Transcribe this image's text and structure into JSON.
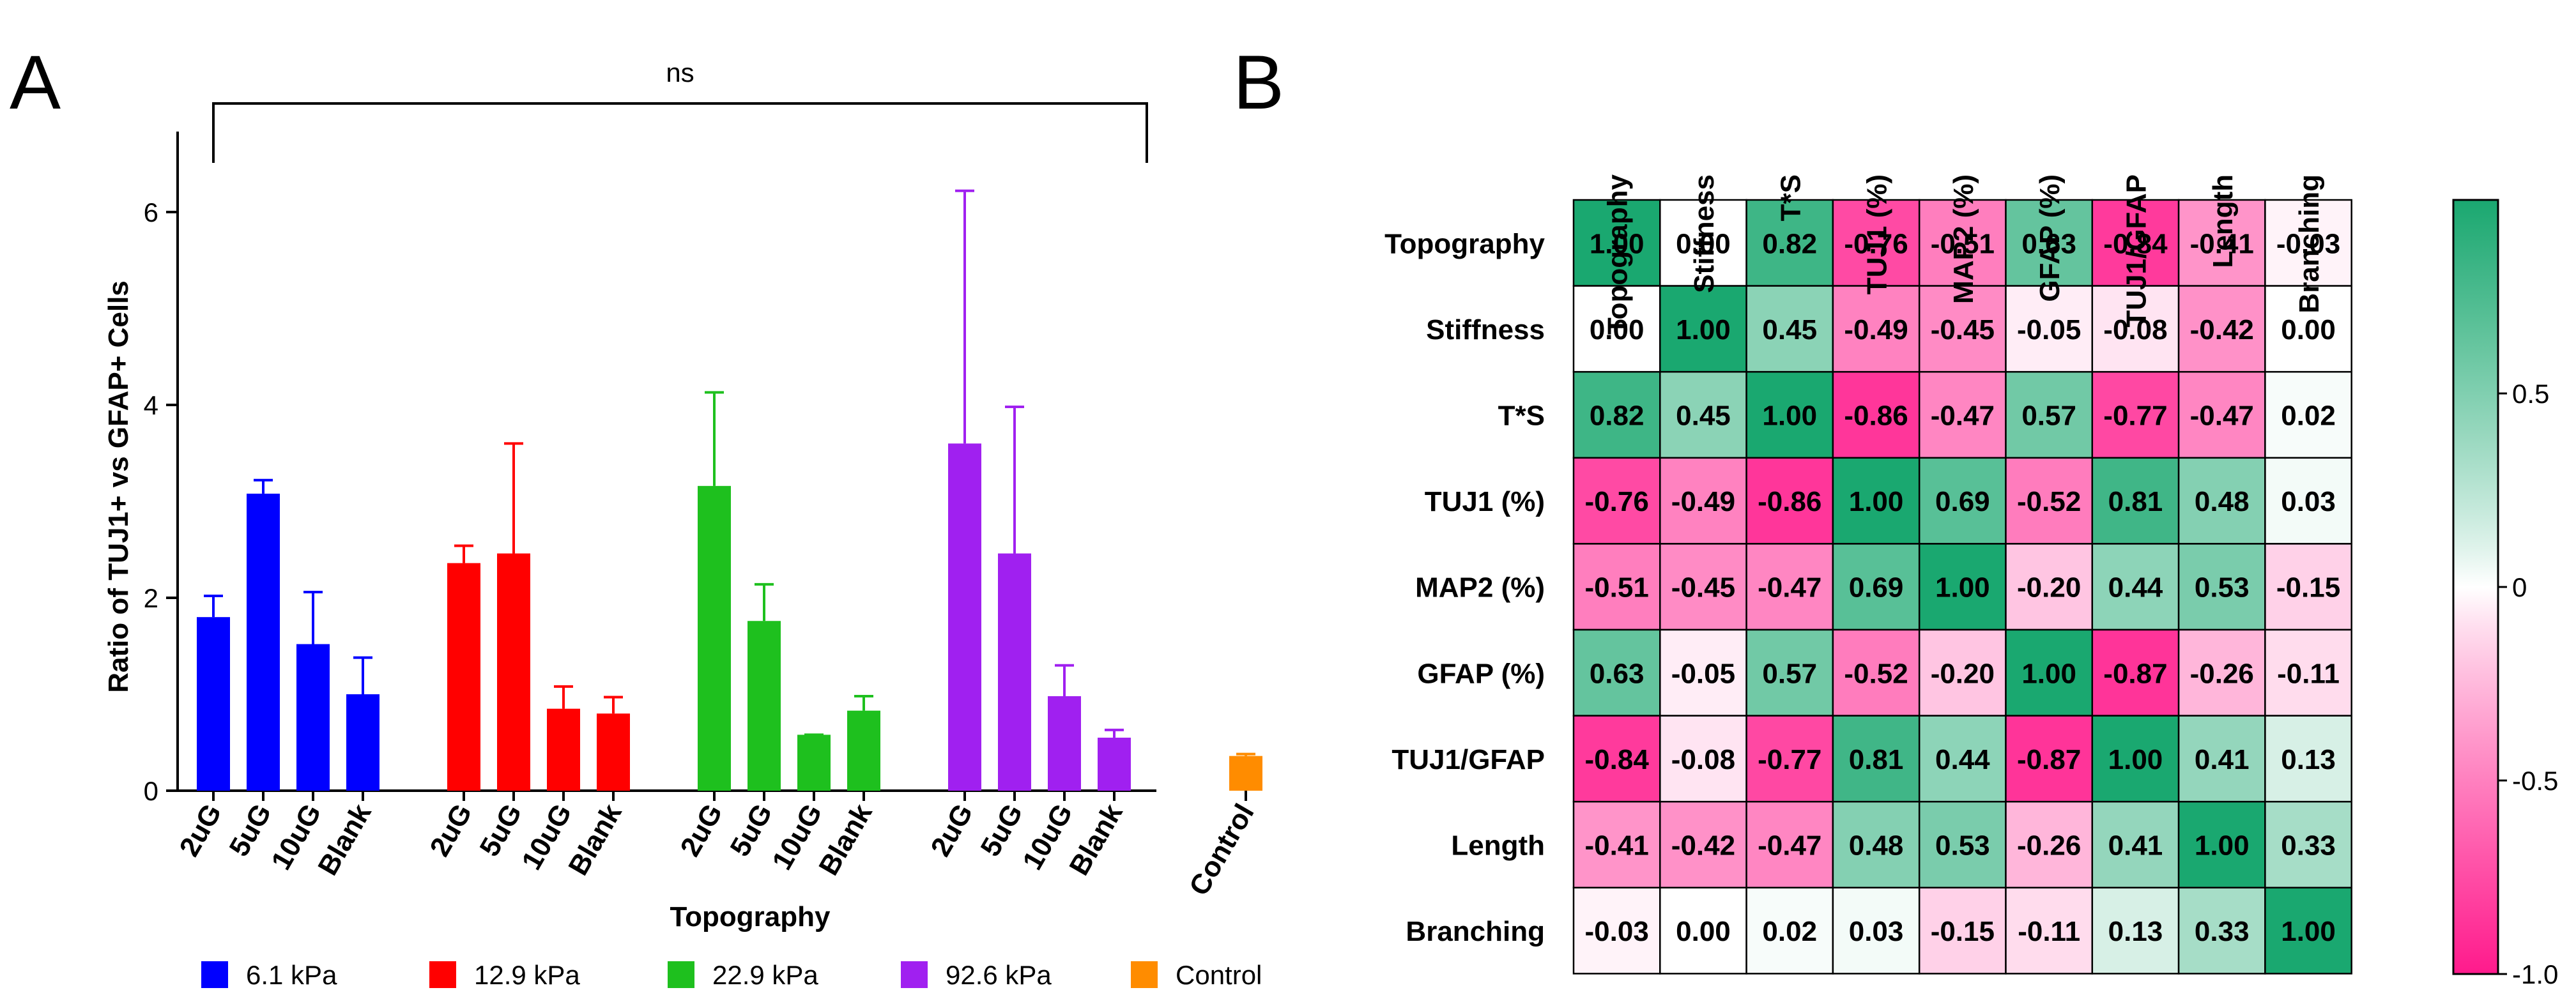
{
  "panel_labels": [
    "A",
    "B"
  ],
  "chart_data": [
    {
      "type": "bar",
      "panel": "A",
      "ylabel": "Ratio of TUJ1+ vs GFAP+ Cells",
      "xlabel": "Topography",
      "ylim": [
        0,
        7
      ],
      "yticks": [
        0,
        2,
        4,
        6
      ],
      "annotation": "ns",
      "groups": [
        {
          "name": "6.1 kPa",
          "color": "#0000ff",
          "categories": [
            "2uG",
            "5uG",
            "10uG",
            "Blank"
          ],
          "values": [
            1.8,
            3.08,
            1.52,
            1.0
          ],
          "errors": [
            0.22,
            0.14,
            0.54,
            0.38
          ]
        },
        {
          "name": "12.9 kPa",
          "color": "#ff0000",
          "categories": [
            "2uG",
            "5uG",
            "10uG",
            "Blank"
          ],
          "values": [
            2.36,
            2.46,
            0.85,
            0.8
          ],
          "errors": [
            0.18,
            1.14,
            0.23,
            0.17
          ]
        },
        {
          "name": "22.9 kPa",
          "color": "#1ec01e",
          "categories": [
            "2uG",
            "5uG",
            "10uG",
            "Blank"
          ],
          "values": [
            3.16,
            1.76,
            0.58,
            0.83
          ],
          "errors": [
            0.97,
            0.38,
            0.0,
            0.15
          ]
        },
        {
          "name": "92.6 kPa",
          "color": "#a020f0",
          "categories": [
            "2uG",
            "5uG",
            "10uG",
            "Blank"
          ],
          "values": [
            3.6,
            2.46,
            0.98,
            0.55
          ],
          "errors": [
            2.62,
            1.52,
            0.32,
            0.08
          ]
        },
        {
          "name": "Control",
          "color": "#ff8c00",
          "categories": [
            "Control"
          ],
          "values": [
            0.36
          ],
          "errors": [
            0.02
          ]
        }
      ],
      "legend": [
        "6.1 kPa",
        "12.9 kPa",
        "22.9 kPa",
        "92.6 kPa",
        "Control"
      ]
    },
    {
      "type": "heatmap",
      "panel": "B",
      "labels": [
        "Topography",
        "Stiffness",
        "T*S",
        "TUJ1 (%)",
        "MAP2 (%)",
        "GFAP (%)",
        "TUJ1/GFAP",
        "Length",
        "Branching"
      ],
      "values": [
        [
          1.0,
          0.0,
          0.82,
          -0.76,
          -0.51,
          0.63,
          -0.84,
          -0.41,
          -0.03
        ],
        [
          0.0,
          1.0,
          0.45,
          -0.49,
          -0.45,
          -0.05,
          -0.08,
          -0.42,
          0.0
        ],
        [
          0.82,
          0.45,
          1.0,
          -0.86,
          -0.47,
          0.57,
          -0.77,
          -0.47,
          0.02
        ],
        [
          -0.76,
          -0.49,
          -0.86,
          1.0,
          0.69,
          -0.52,
          0.81,
          0.48,
          0.03
        ],
        [
          -0.51,
          -0.45,
          -0.47,
          0.69,
          1.0,
          -0.2,
          0.44,
          0.53,
          -0.15
        ],
        [
          0.63,
          -0.05,
          0.57,
          -0.52,
          -0.2,
          1.0,
          -0.87,
          -0.26,
          -0.11
        ],
        [
          -0.84,
          -0.08,
          -0.77,
          0.81,
          0.44,
          -0.87,
          1.0,
          0.41,
          0.13
        ],
        [
          -0.41,
          -0.42,
          -0.47,
          0.48,
          0.53,
          -0.26,
          0.41,
          1.0,
          0.33
        ],
        [
          -0.03,
          0.0,
          0.02,
          0.03,
          -0.15,
          -0.11,
          0.13,
          0.33,
          1.0
        ]
      ],
      "colorbar": {
        "range": [
          -1.0,
          1.0
        ],
        "ticks": [
          "0.5",
          "0",
          "-0.5",
          "-1.0"
        ],
        "tick_values": [
          0.5,
          0,
          -0.5,
          -1.0
        ],
        "low_color": "#ff1a8c",
        "mid_color": "#ffffff",
        "high_color": "#1aa870"
      }
    }
  ]
}
